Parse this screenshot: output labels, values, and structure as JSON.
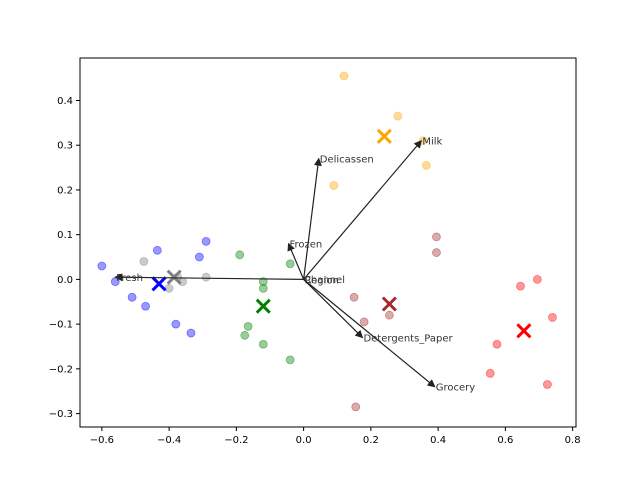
{
  "chart_data": {
    "type": "scatter",
    "title": "",
    "xlabel": "",
    "ylabel": "",
    "xlim": [
      -0.665,
      0.81
    ],
    "ylim": [
      -0.33,
      0.495
    ],
    "xticks": [
      -0.6,
      -0.4,
      -0.2,
      0.0,
      0.2,
      0.4,
      0.6,
      0.8
    ],
    "xtick_labels": [
      "−0.6",
      "−0.4",
      "−0.2",
      "0.0",
      "0.2",
      "0.4",
      "0.6",
      "0.8"
    ],
    "yticks": [
      -0.3,
      -0.2,
      -0.1,
      0.0,
      0.1,
      0.2,
      0.3,
      0.4
    ],
    "ytick_labels": [
      "−0.3",
      "−0.2",
      "−0.1",
      "0.0",
      "0.1",
      "0.2",
      "0.3",
      "0.4"
    ],
    "grid": false,
    "series": [
      {
        "color": "#0000ff",
        "points": [
          [
            -0.6,
            0.03
          ],
          [
            -0.56,
            -0.005
          ],
          [
            -0.51,
            -0.04
          ],
          [
            -0.47,
            -0.06
          ],
          [
            -0.435,
            0.065
          ],
          [
            -0.38,
            -0.1
          ],
          [
            -0.335,
            -0.12
          ],
          [
            -0.31,
            0.05
          ],
          [
            -0.29,
            0.085
          ]
        ],
        "centroid": [
          -0.43,
          -0.01
        ]
      },
      {
        "color": "#808080",
        "points": [
          [
            -0.475,
            0.04
          ],
          [
            -0.4,
            -0.02
          ],
          [
            -0.375,
            0.005
          ],
          [
            -0.36,
            -0.005
          ],
          [
            -0.29,
            0.005
          ]
        ],
        "centroid": [
          -0.385,
          0.005
        ]
      },
      {
        "color": "#008000",
        "points": [
          [
            -0.19,
            0.055
          ],
          [
            -0.175,
            -0.125
          ],
          [
            -0.165,
            -0.105
          ],
          [
            -0.12,
            -0.005
          ],
          [
            -0.12,
            -0.02
          ],
          [
            -0.12,
            -0.145
          ],
          [
            -0.04,
            0.035
          ],
          [
            -0.04,
            -0.18
          ]
        ],
        "centroid": [
          -0.12,
          -0.06
        ]
      },
      {
        "color": "#ffa500",
        "points": [
          [
            0.09,
            0.21
          ],
          [
            0.12,
            0.455
          ],
          [
            0.28,
            0.365
          ],
          [
            0.355,
            0.31
          ],
          [
            0.365,
            0.255
          ]
        ],
        "centroid": [
          0.24,
          0.32
        ]
      },
      {
        "color": "#a52a2a",
        "points": [
          [
            0.15,
            -0.04
          ],
          [
            0.155,
            -0.285
          ],
          [
            0.18,
            -0.095
          ],
          [
            0.255,
            -0.08
          ],
          [
            0.395,
            0.095
          ],
          [
            0.395,
            0.06
          ]
        ],
        "centroid": [
          0.255,
          -0.055
        ]
      },
      {
        "color": "#ff0000",
        "points": [
          [
            0.555,
            -0.21
          ],
          [
            0.575,
            -0.145
          ],
          [
            0.645,
            -0.015
          ],
          [
            0.695,
            0.0
          ],
          [
            0.725,
            -0.235
          ],
          [
            0.74,
            -0.085
          ]
        ],
        "centroid": [
          0.655,
          -0.115
        ]
      }
    ],
    "vectors": [
      {
        "label": "Milk",
        "x": 0.35,
        "y": 0.31
      },
      {
        "label": "Delicassen",
        "x": 0.045,
        "y": 0.27
      },
      {
        "label": "Frozen",
        "x": -0.045,
        "y": 0.08
      },
      {
        "label": "Channel",
        "x": -0.002,
        "y": 0.001
      },
      {
        "label": "Region",
        "x": 0.0,
        "y": 0.0
      },
      {
        "label": "Fresh",
        "x": -0.56,
        "y": 0.005
      },
      {
        "label": "Detergents_Paper",
        "x": 0.175,
        "y": -0.13
      },
      {
        "label": "Grocery",
        "x": 0.39,
        "y": -0.24
      }
    ]
  }
}
